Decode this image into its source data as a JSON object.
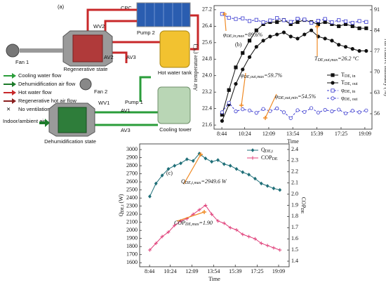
{
  "diagram": {
    "panel": "(a)",
    "labels": {
      "cpc": "CPC",
      "wv2": "WV2",
      "pump2": "Pump 2",
      "fan1": "Fan 1",
      "regen": "Regenerative state",
      "av2": "AV2",
      "av3_top": "AV3",
      "tank": "Hot water tank",
      "fan2": "Fan 2",
      "wv1": "WV1",
      "pump1": "Pump 1",
      "av1": "AV1",
      "av3_bottom": "AV3",
      "indoor": "Indoor/ambient air",
      "dehum": "Dehumidification state",
      "tower": "Cooling tower"
    },
    "legend": [
      "Cooling water flow",
      "Dehumidification air flow",
      "Hot water flow",
      "Regenerative hot air flow",
      "No ventilation"
    ]
  },
  "chart_data": [
    {
      "type": "line",
      "panel": "(b)",
      "x_label": "Time",
      "y_label": "Air temperature (°C)",
      "y2_label": "Air relative humidity (%)",
      "x": [
        525,
        555,
        585,
        615,
        645,
        675,
        705,
        735,
        765,
        795,
        825,
        855,
        885,
        915,
        945,
        975,
        1005,
        1035,
        1065,
        1095,
        1125,
        1155
      ],
      "xlim": [
        490,
        1180
      ],
      "xticks": [
        {
          "value": 524,
          "label": "8:44"
        },
        {
          "value": 624,
          "label": "10:24"
        },
        {
          "value": 729,
          "label": "12:09"
        },
        {
          "value": 834,
          "label": "13:54"
        },
        {
          "value": 939,
          "label": "15:39"
        },
        {
          "value": 1045,
          "label": "17:25"
        },
        {
          "value": 1149,
          "label": "19:09"
        }
      ],
      "ylim": [
        21.4,
        27.4
      ],
      "yticks": [
        21.6,
        22.4,
        23.2,
        {
          "value": 24,
          "label": "24.0"
        },
        24.8,
        25.6,
        26.4,
        27.2
      ],
      "y2lim": [
        50.8,
        92.4
      ],
      "y2ticks": [
        56,
        63,
        70,
        77,
        84,
        91
      ],
      "legend": "center right",
      "series": [
        {
          "name": "T",
          "name_sub": "DE, in",
          "color": "#111111",
          "marker": "square",
          "linestyle": "solid",
          "values": [
            22.1,
            23.3,
            24.4,
            25.1,
            25.7,
            26.2,
            26.5,
            26.6,
            26.6,
            26.7,
            26.5,
            26.6,
            26.7,
            26.6,
            26.5,
            26.6,
            26.5,
            26.4,
            26.5,
            26.4,
            26.3,
            26.3
          ]
        },
        {
          "name": "T",
          "name_sub": "DE, out",
          "color": "#111111",
          "marker": "circle",
          "linestyle": "solid",
          "values": [
            21.8,
            22.6,
            23.6,
            24.3,
            24.9,
            25.4,
            25.7,
            25.9,
            26.0,
            26.1,
            25.9,
            25.8,
            26.0,
            26.2,
            25.9,
            25.8,
            25.7,
            25.5,
            25.4,
            25.3,
            25.2,
            25.2
          ]
        },
        {
          "name": "φ",
          "name_sub": "DE, in",
          "color": "#3a3ad0",
          "marker": "open-square",
          "linestyle": "dashed",
          "axis": "y2",
          "values": [
            89.6,
            88.3,
            87.9,
            88.1,
            87.2,
            87.6,
            86.8,
            87.4,
            88.2,
            87.5,
            86.9,
            88.0,
            87.7,
            86.6,
            87.3,
            87.9,
            86.8,
            87.5,
            87.1,
            86.6,
            87.2,
            86.9
          ]
        },
        {
          "name": "φ",
          "name_sub": "DE, out",
          "color": "#3a3ad0",
          "marker": "open-circle",
          "linestyle": "dashed",
          "axis": "y2",
          "values": [
            56.5,
            59.7,
            56.8,
            57.5,
            57.1,
            56.3,
            57.6,
            56.9,
            57.8,
            56.5,
            54.5,
            57.2,
            56.6,
            57.9,
            56.4,
            57.3,
            56.8,
            57.4,
            56.1,
            57.0,
            56.5,
            57.1
          ]
        }
      ],
      "annotations": [
        {
          "main": "φ",
          "sub": "DE,in,max",
          "rest": "=89.6%"
        },
        {
          "main": "T",
          "sub": "DE,out,max",
          "rest": "=26.2 °C"
        },
        {
          "main": "φ",
          "sub": "DE,out,max",
          "rest": "=59.7%"
        },
        {
          "main": "φ",
          "sub": "DE,out,min",
          "rest": "=54.5%"
        }
      ]
    },
    {
      "type": "line",
      "panel": "(c)",
      "x_label": "Time",
      "y_label": {
        "main": "Q",
        "sub": "DE,t",
        "rest": " (W)"
      },
      "y2_label": {
        "main": "COP",
        "sub": "DE"
      },
      "x": [
        525,
        555,
        585,
        615,
        645,
        675,
        705,
        735,
        765,
        795,
        825,
        855,
        885,
        915,
        945,
        975,
        1005,
        1035,
        1065,
        1095,
        1125,
        1155
      ],
      "xlim": [
        476,
        1200
      ],
      "xticks": [
        {
          "value": 524,
          "label": "8:44"
        },
        {
          "value": 624,
          "label": "10:24"
        },
        {
          "value": 729,
          "label": "12:09"
        },
        {
          "value": 834,
          "label": "13:54"
        },
        {
          "value": 939,
          "label": "15:39"
        },
        {
          "value": 1045,
          "label": "17:25"
        },
        {
          "value": 1149,
          "label": "19:09"
        }
      ],
      "ylim": [
        1550,
        3070
      ],
      "yticks": [
        1600,
        1700,
        1800,
        1900,
        2000,
        2100,
        2200,
        2300,
        2400,
        2500,
        2600,
        2700,
        2800,
        2900,
        3000
      ],
      "y2lim": [
        1.35,
        2.45
      ],
      "y2ticks": [
        1.4,
        1.5,
        1.6,
        1.7,
        1.8,
        1.9,
        {
          "value": 2,
          "label": "2.0"
        },
        2.1,
        2.2,
        2.3,
        2.4
      ],
      "legend": "upper right",
      "series": [
        {
          "name": "Q",
          "name_sub": "DE,t",
          "color": "#1f6f78",
          "marker": "diamond",
          "linestyle": "solid",
          "values": [
            2420,
            2580,
            2680,
            2760,
            2800,
            2830,
            2880,
            2860,
            2949.6,
            2890,
            2850,
            2870,
            2820,
            2800,
            2760,
            2720,
            2690,
            2640,
            2580,
            2550,
            2520,
            2500
          ]
        },
        {
          "name": "COP",
          "name_sub": "DE",
          "color": "#e0407a",
          "marker": "plus",
          "linestyle": "solid",
          "axis": "y2",
          "values": [
            1.5,
            1.56,
            1.62,
            1.66,
            1.72,
            1.76,
            1.78,
            1.82,
            1.86,
            1.9,
            1.82,
            1.76,
            1.74,
            1.7,
            1.68,
            1.64,
            1.62,
            1.6,
            1.56,
            1.54,
            1.52,
            1.5
          ]
        }
      ],
      "annotations": [
        {
          "main": "Q",
          "sub": "DE,t,max",
          "rest": "=2949.6 W"
        },
        {
          "main": "COP",
          "sub": "DE,max",
          "rest": "=1.90"
        }
      ]
    }
  ]
}
